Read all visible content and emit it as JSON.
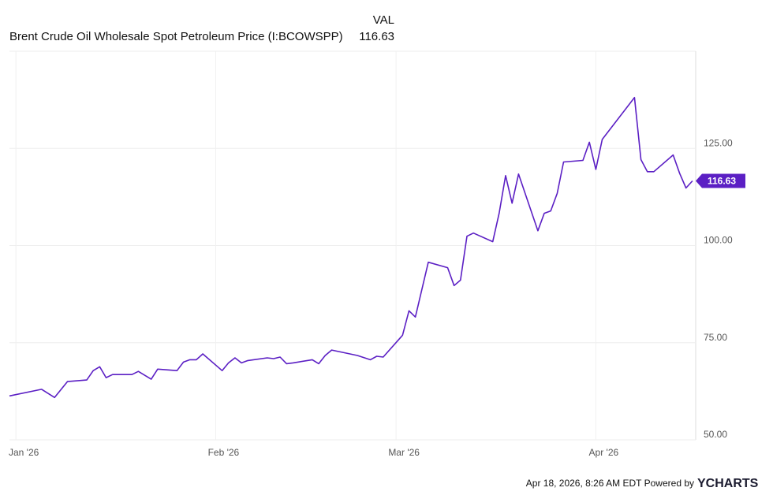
{
  "chart_data": {
    "type": "line",
    "header_column": "VAL",
    "footer_text": "Apr 18, 2026, 8:26 AM EDT Powered by",
    "brand": "YCHARTS",
    "xlim": [
      -1,
      105.5
    ],
    "xticks": [
      {
        "value": 0,
        "label": "Jan '26"
      },
      {
        "value": 31,
        "label": "Feb '26"
      },
      {
        "value": 59,
        "label": "Mar '26"
      },
      {
        "value": 90,
        "label": "Apr '26"
      }
    ],
    "ylim": [
      50,
      150
    ],
    "yticks": [
      {
        "value": 50,
        "label": "50.00"
      },
      {
        "value": 75,
        "label": "75.00"
      },
      {
        "value": 100,
        "label": "100.00"
      },
      {
        "value": 125,
        "label": "125.00"
      }
    ],
    "grid": true,
    "x": [
      -1,
      4,
      6,
      8,
      11,
      12,
      13,
      14,
      15,
      18,
      19,
      21,
      22,
      25,
      26,
      27,
      28,
      29,
      32,
      33,
      34,
      35,
      36,
      39,
      40,
      41,
      42,
      43,
      46,
      47,
      48,
      49,
      53,
      55,
      56,
      57,
      60,
      61,
      62,
      64,
      67,
      68,
      69,
      70,
      71,
      74,
      75,
      76,
      77,
      78,
      81,
      82,
      83,
      84,
      85,
      88,
      89,
      90,
      91,
      96,
      97,
      98,
      99,
      102,
      103,
      104,
      105
    ],
    "series": [
      {
        "name": "Brent Crude Oil Wholesale Spot Petroleum Price (I:BCOWSPP)",
        "color": "#5b1fc4",
        "last_value": 116.63,
        "values": [
          61.3,
          63.0,
          60.9,
          65.0,
          65.4,
          67.8,
          68.8,
          66.0,
          66.8,
          66.8,
          67.6,
          65.6,
          68.2,
          67.8,
          70.0,
          70.6,
          70.6,
          72.1,
          67.8,
          69.8,
          71.1,
          69.8,
          70.4,
          71.1,
          70.9,
          71.3,
          69.6,
          69.8,
          70.6,
          69.6,
          71.7,
          73.1,
          71.7,
          70.6,
          71.5,
          71.3,
          76.9,
          83.2,
          81.6,
          95.7,
          94.3,
          89.7,
          91.1,
          102.4,
          103.2,
          101.0,
          108.3,
          118.0,
          110.9,
          118.4,
          103.8,
          108.3,
          108.9,
          113.4,
          121.5,
          121.9,
          126.6,
          119.6,
          127.3,
          138.1,
          122.1,
          119.0,
          119.0,
          123.3,
          118.6,
          114.8,
          116.63
        ]
      }
    ]
  }
}
